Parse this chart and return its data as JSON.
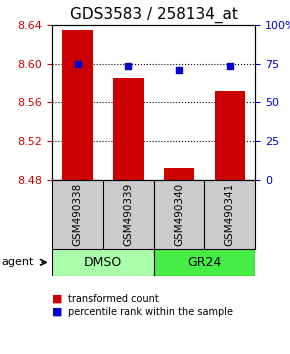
{
  "title": "GDS3583 / 258134_at",
  "samples": [
    "GSM490338",
    "GSM490339",
    "GSM490340",
    "GSM490341"
  ],
  "bar_values": [
    8.635,
    8.585,
    8.492,
    8.572
  ],
  "percentile_values": [
    74.5,
    73.5,
    71.0,
    73.5
  ],
  "bar_color": "#cc0000",
  "dot_color": "#0000cc",
  "ylim_left": [
    8.48,
    8.64
  ],
  "ylim_right": [
    0,
    100
  ],
  "yticks_left": [
    8.48,
    8.52,
    8.56,
    8.6,
    8.64
  ],
  "ytick_labels_left": [
    "8.48",
    "8.52",
    "8.56",
    "8.60",
    "8.64"
  ],
  "yticks_right": [
    0,
    25,
    50,
    75,
    100
  ],
  "ytick_labels_right": [
    "0",
    "25",
    "50",
    "75",
    "100%"
  ],
  "groups": [
    {
      "label": "DMSO",
      "indices": [
        0,
        1
      ],
      "color": "#aaffaa"
    },
    {
      "label": "GR24",
      "indices": [
        2,
        3
      ],
      "color": "#44ee44"
    }
  ],
  "agent_label": "agent",
  "legend_bar_label": "transformed count",
  "legend_dot_label": "percentile rank within the sample",
  "bar_width": 0.6,
  "background_color": "#ffffff",
  "plot_bg_color": "#ffffff",
  "sample_box_color": "#cccccc",
  "grid_color": "#000000",
  "title_fontsize": 11,
  "tick_fontsize": 8,
  "label_fontsize": 8
}
